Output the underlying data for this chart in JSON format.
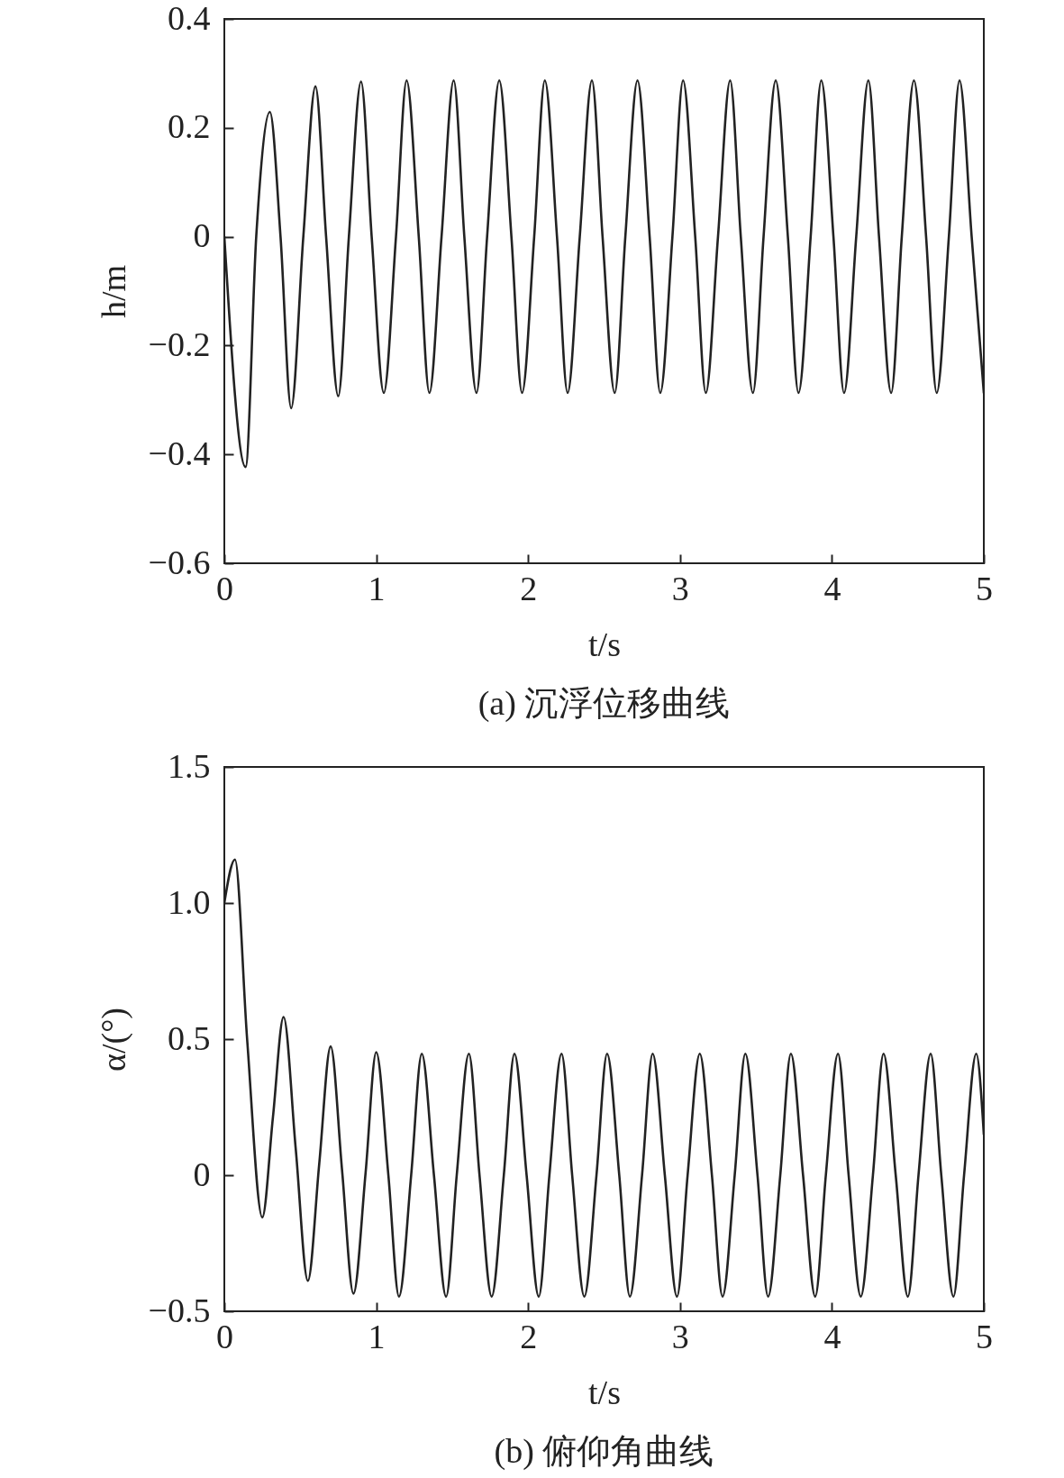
{
  "chart_data": [
    {
      "type": "line",
      "title": "(a) 沉浮位移曲线",
      "xlabel": "t/s",
      "ylabel": "h/m",
      "x": [
        0,
        0.14,
        0.21,
        0.3,
        0.37,
        0.44,
        0.52,
        0.6,
        0.67,
        0.75,
        0.82,
        0.9,
        0.97,
        1.05,
        1.13,
        1.2,
        1.28,
        1.35,
        1.43,
        1.51,
        1.58,
        1.66,
        1.73,
        1.81,
        1.89,
        1.96,
        2.04,
        2.11,
        2.19,
        2.26,
        2.34,
        2.42,
        2.49,
        2.57,
        2.64,
        2.72,
        2.8,
        2.87,
        2.95,
        3.02,
        3.1,
        3.17,
        3.25,
        3.33,
        3.4,
        3.48,
        3.55,
        3.63,
        3.71,
        3.78,
        3.86,
        3.93,
        4.01,
        4.08,
        4.16,
        4.24,
        4.31,
        4.39,
        4.46,
        4.54,
        4.62,
        4.69,
        4.77,
        4.84,
        4.92,
        5.0
      ],
      "series": [
        {
          "color": "#222222",
          "values": [
            0,
            -0.423,
            0,
            0.229,
            0,
            -0.315,
            0,
            0.276,
            0,
            -0.293,
            0,
            0.285,
            0,
            -0.287,
            0,
            0.287,
            0,
            -0.287,
            0,
            0.287,
            0,
            -0.287,
            0,
            0.287,
            0,
            -0.287,
            0,
            0.287,
            0,
            -0.287,
            0,
            0.287,
            0,
            -0.287,
            0,
            0.287,
            0,
            -0.287,
            0,
            0.287,
            0,
            -0.287,
            0,
            0.287,
            0,
            -0.287,
            0,
            0.287,
            0,
            -0.287,
            0,
            0.287,
            0,
            -0.287,
            0,
            0.287,
            0,
            -0.287,
            0,
            0.287,
            0,
            -0.287,
            0,
            0.287,
            0,
            -0.287
          ]
        }
      ],
      "xlim": [
        0,
        5
      ],
      "ylim": [
        -0.6,
        0.4
      ],
      "xticks": [
        0,
        1,
        2,
        3,
        4,
        5
      ],
      "yticks": [
        {
          "value": -0.6,
          "label": "−0.6"
        },
        {
          "value": -0.4,
          "label": "−0.4"
        },
        {
          "value": -0.2,
          "label": "−0.2"
        },
        0,
        0.2,
        0.4
      ],
      "grid": false
    },
    {
      "type": "line",
      "title": "(b) 俯仰角曲线",
      "xlabel": "t/s",
      "ylabel": "α/(°)",
      "x": [
        0,
        0.07,
        0.15,
        0.25,
        0.32,
        0.39,
        0.47,
        0.55,
        0.625,
        0.7,
        0.775,
        0.85,
        0.93,
        1.0,
        1.08,
        1.15,
        1.23,
        1.3,
        1.38,
        1.46,
        1.53,
        1.61,
        1.68,
        1.76,
        1.84,
        1.91,
        1.99,
        2.07,
        2.14,
        2.22,
        2.29,
        2.37,
        2.45,
        2.52,
        2.6,
        2.67,
        2.75,
        2.82,
        2.9,
        2.98,
        3.05,
        3.13,
        3.21,
        3.28,
        3.36,
        3.43,
        3.51,
        3.58,
        3.66,
        3.73,
        3.81,
        3.89,
        3.96,
        4.04,
        4.11,
        4.19,
        4.27,
        4.34,
        4.42,
        4.5,
        4.57,
        4.65,
        4.72,
        4.8,
        4.87,
        4.95,
        5.0
      ],
      "series": [
        {
          "color": "#222222",
          "values": [
            1.0,
            1.16,
            0.5,
            -0.155,
            0.213,
            0.581,
            0.097,
            -0.388,
            0.043,
            0.473,
            0.019,
            -0.435,
            0.009,
            0.452,
            0,
            -0.446,
            0,
            0.446,
            0,
            -0.446,
            0,
            0.446,
            0,
            -0.446,
            0,
            0.446,
            0,
            -0.446,
            0,
            0.446,
            0,
            -0.446,
            0,
            0.446,
            0,
            -0.446,
            0,
            0.446,
            0,
            -0.446,
            0,
            0.446,
            0,
            -0.446,
            0,
            0.446,
            0,
            -0.446,
            0,
            0.446,
            0,
            -0.446,
            0,
            0.446,
            0,
            -0.446,
            0,
            0.446,
            0,
            -0.446,
            0,
            0.446,
            0,
            -0.446,
            0,
            0.446,
            0.15
          ]
        }
      ],
      "xlim": [
        0,
        5
      ],
      "ylim": [
        -0.5,
        1.5
      ],
      "xticks": [
        0,
        1,
        2,
        3,
        4,
        5
      ],
      "yticks": [
        {
          "value": -0.5,
          "label": "−0.5"
        },
        0,
        0.5,
        {
          "value": 1,
          "label": "1.0"
        },
        1.5
      ],
      "grid": false
    }
  ]
}
